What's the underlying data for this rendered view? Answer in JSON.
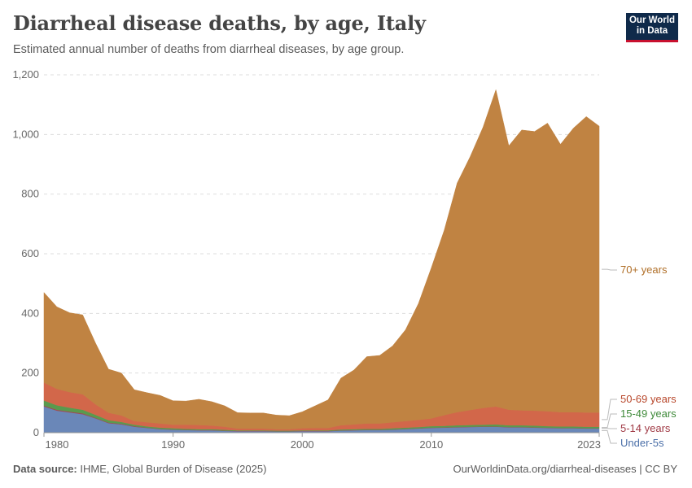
{
  "header": {
    "title": "Diarrheal disease deaths, by age, Italy",
    "subtitle": "Estimated annual number of deaths from diarrheal diseases, by age group.",
    "logo_line1": "Our World",
    "logo_line2": "in Data"
  },
  "footer": {
    "source_label": "Data source:",
    "source_text": "IHME, Global Burden of Disease (2025)",
    "url": "OurWorldinData.org/diarrheal-diseases | CC BY"
  },
  "chart_data": {
    "type": "area",
    "stacked": true,
    "x": [
      1980,
      1981,
      1982,
      1983,
      1984,
      1985,
      1986,
      1987,
      1988,
      1989,
      1990,
      1991,
      1992,
      1993,
      1994,
      1995,
      1996,
      1997,
      1998,
      1999,
      2000,
      2001,
      2002,
      2003,
      2004,
      2005,
      2006,
      2007,
      2008,
      2009,
      2010,
      2011,
      2012,
      2013,
      2014,
      2015,
      2016,
      2017,
      2018,
      2019,
      2020,
      2021,
      2022,
      2023
    ],
    "x_ticks": [
      1980,
      1990,
      2000,
      2010,
      2023
    ],
    "y_ticks": [
      0,
      200,
      400,
      600,
      800,
      1000,
      1200
    ],
    "y_tick_labels": [
      "0",
      "200",
      "400",
      "600",
      "800",
      "1,000",
      "1,200"
    ],
    "ylim": [
      0,
      1200
    ],
    "grid": true,
    "legend_placement": "right",
    "series": [
      {
        "name": "Under-5s",
        "color": "#6a87b8",
        "values": [
          88,
          74,
          68,
          62,
          48,
          32,
          28,
          20,
          16,
          12,
          10,
          9,
          8,
          8,
          6,
          5,
          5,
          5,
          4,
          4,
          5,
          5,
          5,
          7,
          8,
          9,
          9,
          10,
          12,
          14,
          16,
          17,
          18,
          19,
          20,
          20,
          18,
          18,
          17,
          16,
          15,
          15,
          14,
          14
        ]
      },
      {
        "name": "5-14 years",
        "color": "#a04a55",
        "values": [
          3,
          3,
          3,
          3,
          2,
          2,
          2,
          2,
          1,
          1,
          1,
          1,
          1,
          1,
          1,
          1,
          1,
          1,
          1,
          1,
          1,
          1,
          1,
          1,
          1,
          1,
          1,
          1,
          1,
          1,
          1,
          1,
          1,
          1,
          1,
          1,
          1,
          1,
          1,
          1,
          1,
          1,
          1,
          1
        ]
      },
      {
        "name": "15-49 years",
        "color": "#5a9a4e",
        "values": [
          17,
          15,
          13,
          12,
          10,
          8,
          6,
          5,
          4,
          4,
          4,
          3,
          3,
          3,
          3,
          2,
          2,
          2,
          2,
          2,
          2,
          2,
          2,
          3,
          3,
          3,
          3,
          4,
          4,
          4,
          5,
          5,
          6,
          6,
          6,
          7,
          6,
          6,
          6,
          5,
          5,
          5,
          5,
          5
        ]
      },
      {
        "name": "50-69 years",
        "color": "#d2674a",
        "values": [
          60,
          55,
          52,
          52,
          35,
          25,
          22,
          12,
          14,
          14,
          12,
          14,
          14,
          12,
          10,
          6,
          6,
          6,
          5,
          5,
          7,
          8,
          8,
          14,
          16,
          18,
          18,
          20,
          22,
          24,
          26,
          36,
          44,
          50,
          56,
          60,
          52,
          50,
          50,
          50,
          48,
          48,
          48,
          48
        ]
      },
      {
        "name": "70+ years",
        "color": "#c08342",
        "values": [
          302,
          275,
          266,
          266,
          205,
          146,
          142,
          105,
          99,
          94,
          80,
          79,
          86,
          80,
          70,
          53,
          52,
          52,
          47,
          45,
          55,
          74,
          94,
          158,
          182,
          224,
          228,
          256,
          306,
          390,
          505,
          620,
          768,
          849,
          941,
          1062,
          885,
          940,
          936,
          966,
          898,
          952,
          992,
          960
        ]
      }
    ]
  }
}
